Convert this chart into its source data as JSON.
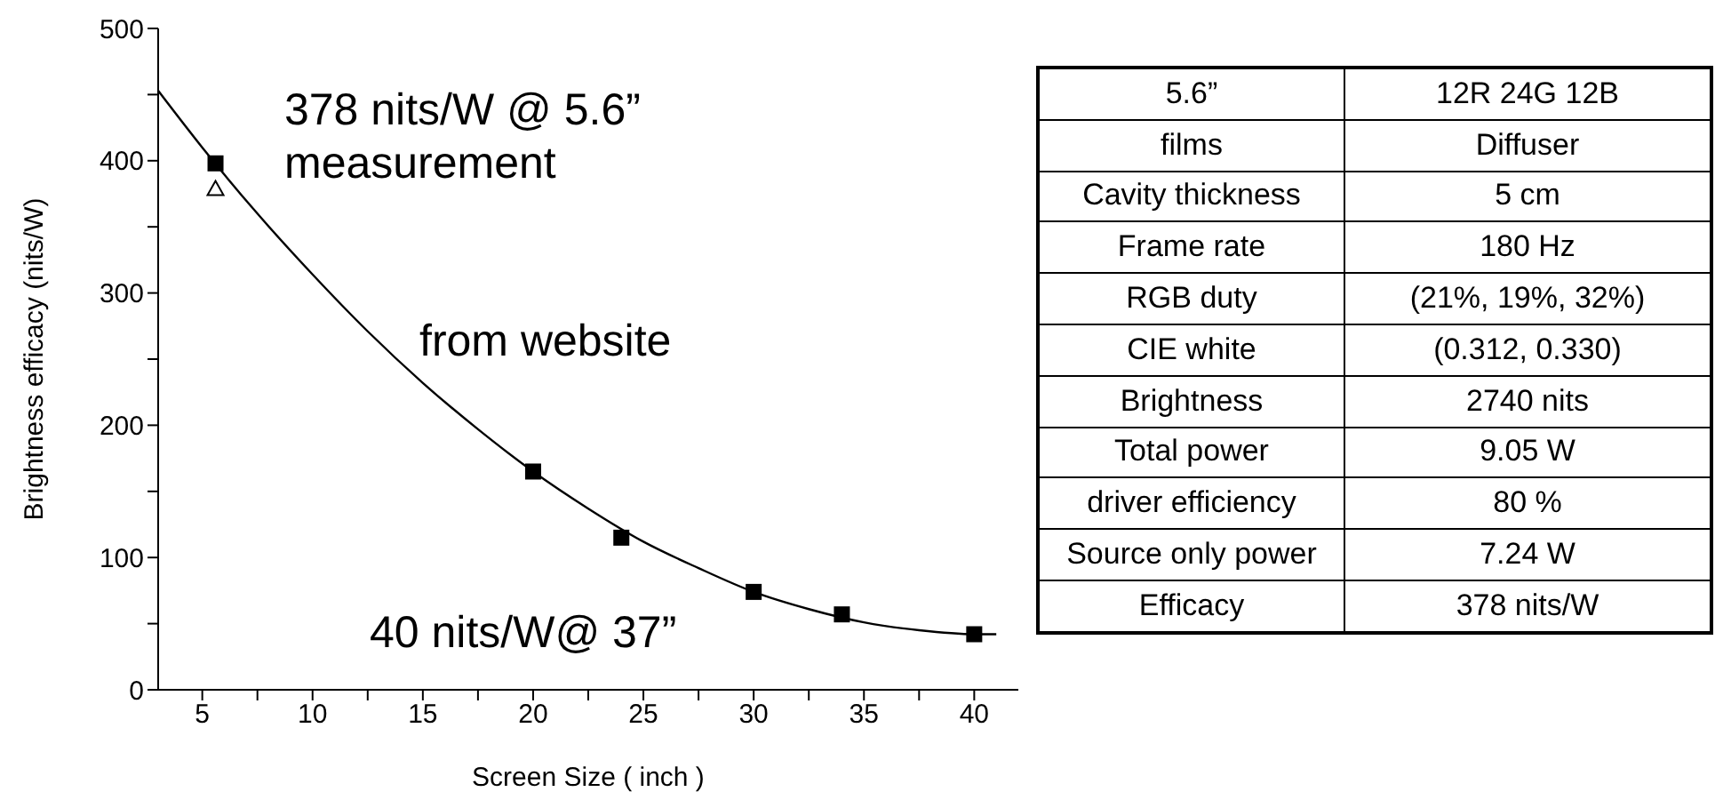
{
  "chart_data": [
    {
      "type": "scatter",
      "xlabel": "Screen Size ( inch )",
      "ylabel": "Brightness efficacy (nits/W)",
      "xlim": [
        3,
        42
      ],
      "xticks": [
        5,
        {
          "value": 7.5,
          "label": null
        },
        10,
        {
          "value": 12.5,
          "label": null
        },
        15,
        {
          "value": 17.5,
          "label": null
        },
        20,
        {
          "value": 22.5,
          "label": null
        },
        25,
        {
          "value": 27.5,
          "label": null
        },
        30,
        {
          "value": 32.5,
          "label": null
        },
        35,
        {
          "value": 37.5,
          "label": null
        },
        40
      ],
      "ylim": [
        0,
        500
      ],
      "yticks": [
        0,
        {
          "value": 50,
          "label": null
        },
        100,
        {
          "value": 150,
          "label": null
        },
        200,
        {
          "value": 250,
          "label": null
        },
        300,
        {
          "value": 350,
          "label": null
        },
        400,
        {
          "value": 450,
          "label": null
        },
        500
      ],
      "series": [
        {
          "type": "scatter",
          "marker": "square",
          "color": "#000000",
          "x": [
            5.6,
            20,
            24,
            30,
            34,
            40
          ],
          "values": [
            398,
            165,
            115,
            74,
            57,
            42
          ]
        },
        {
          "type": "scatter",
          "marker": "triangle",
          "color": "#000000",
          "x": [
            5.6
          ],
          "values": [
            378
          ]
        },
        {
          "type": "line",
          "color": "#000000",
          "x": [
            3,
            5,
            7.5,
            10,
            12.5,
            15,
            17.5,
            20,
            22.5,
            25,
            27.5,
            30,
            32.5,
            35,
            37.5,
            40,
            41
          ],
          "values": [
            453,
            410,
            360,
            314,
            271,
            232,
            197,
            165,
            137,
            112,
            92,
            74,
            61,
            51,
            45,
            42,
            42
          ]
        }
      ],
      "annotations": [
        "378 nits/W @ 5.6” measurement",
        "from website",
        "40 nits/W@ 37”"
      ]
    },
    {
      "type": "other",
      "annotations": [
        "5.6”",
        "12R 24G 12B",
        "films",
        "Diffuser",
        "Cavity thickness",
        "5 cm",
        "Frame rate",
        "180 Hz",
        "RGB duty",
        "(21%, 19%, 32%)",
        "CIE white",
        "(0.312, 0.330)",
        "Brightness",
        "2740 nits",
        "Total power",
        "9.05 W",
        "driver efficiency",
        "80 %",
        "Source only power",
        "7.24 W",
        "Efficacy",
        "378 nits/W"
      ]
    }
  ]
}
